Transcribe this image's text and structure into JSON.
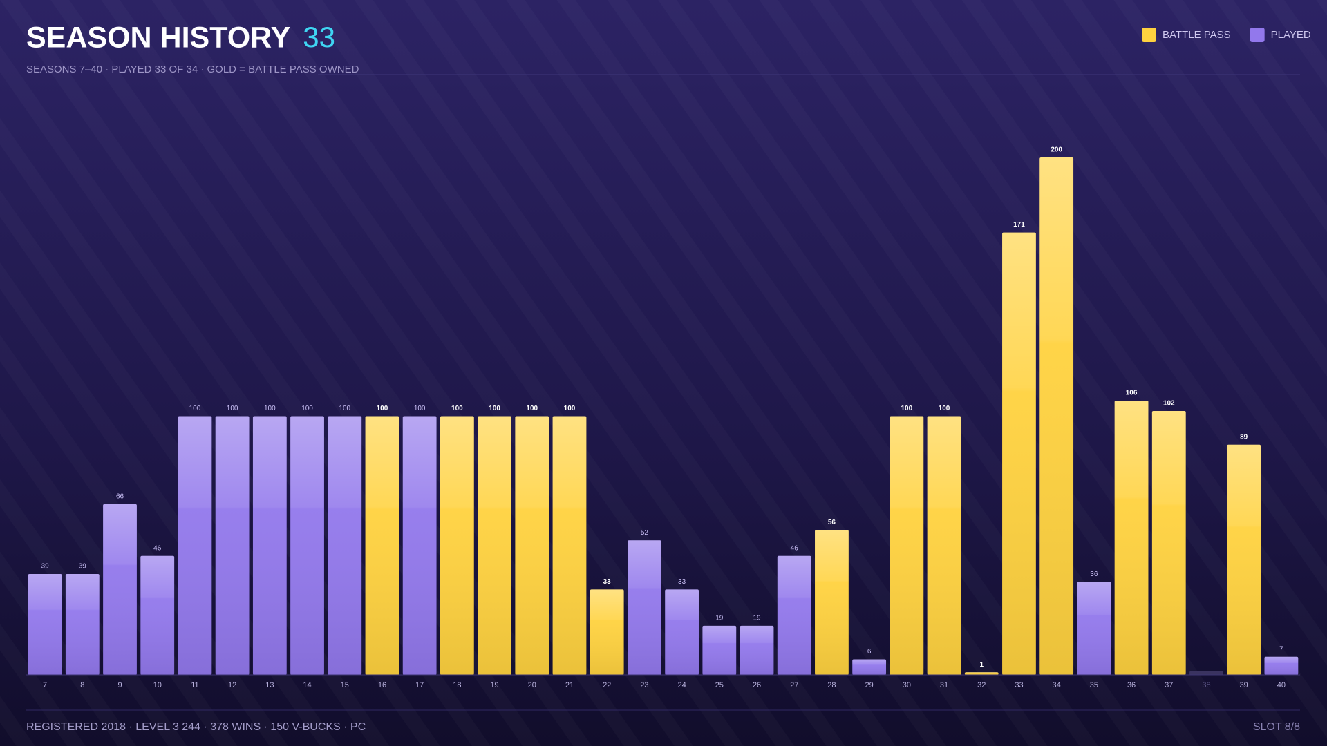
{
  "chart_data": {
    "type": "bar",
    "title": "SEASON HISTORY",
    "title_count": "33",
    "subtitle": "SEASONS 7–40 · PLAYED 33 OF 34 · GOLD = BATTLE PASS OWNED",
    "footer": "REGISTERED 2018 · LEVEL 3 244 · 378 WINS · 150 V-BUCKS · PC",
    "slot": "SLOT 8/8",
    "categories": [
      "7",
      "8",
      "9",
      "10",
      "11",
      "12",
      "13",
      "14",
      "15",
      "16",
      "17",
      "18",
      "19",
      "20",
      "21",
      "22",
      "23",
      "24",
      "25",
      "26",
      "27",
      "28",
      "29",
      "30",
      "31",
      "32",
      "33",
      "34",
      "35",
      "36",
      "37",
      "38",
      "39",
      "40"
    ],
    "series": [
      {
        "name": "BATTLE PASS",
        "color": "#ffd23f",
        "values": [
          null,
          null,
          null,
          null,
          null,
          null,
          null,
          null,
          null,
          100,
          null,
          100,
          100,
          100,
          100,
          33,
          null,
          null,
          null,
          null,
          null,
          56,
          null,
          100,
          100,
          1,
          171,
          200,
          null,
          106,
          102,
          null,
          89,
          null
        ]
      },
      {
        "name": "PLAYED",
        "color": "#9278ec",
        "values": [
          39,
          39,
          66,
          46,
          100,
          100,
          100,
          100,
          100,
          null,
          100,
          null,
          null,
          null,
          null,
          null,
          52,
          33,
          19,
          19,
          46,
          null,
          6,
          null,
          null,
          null,
          null,
          null,
          36,
          null,
          null,
          null,
          null,
          7
        ]
      }
    ],
    "ylim": [
      0,
      200
    ]
  }
}
